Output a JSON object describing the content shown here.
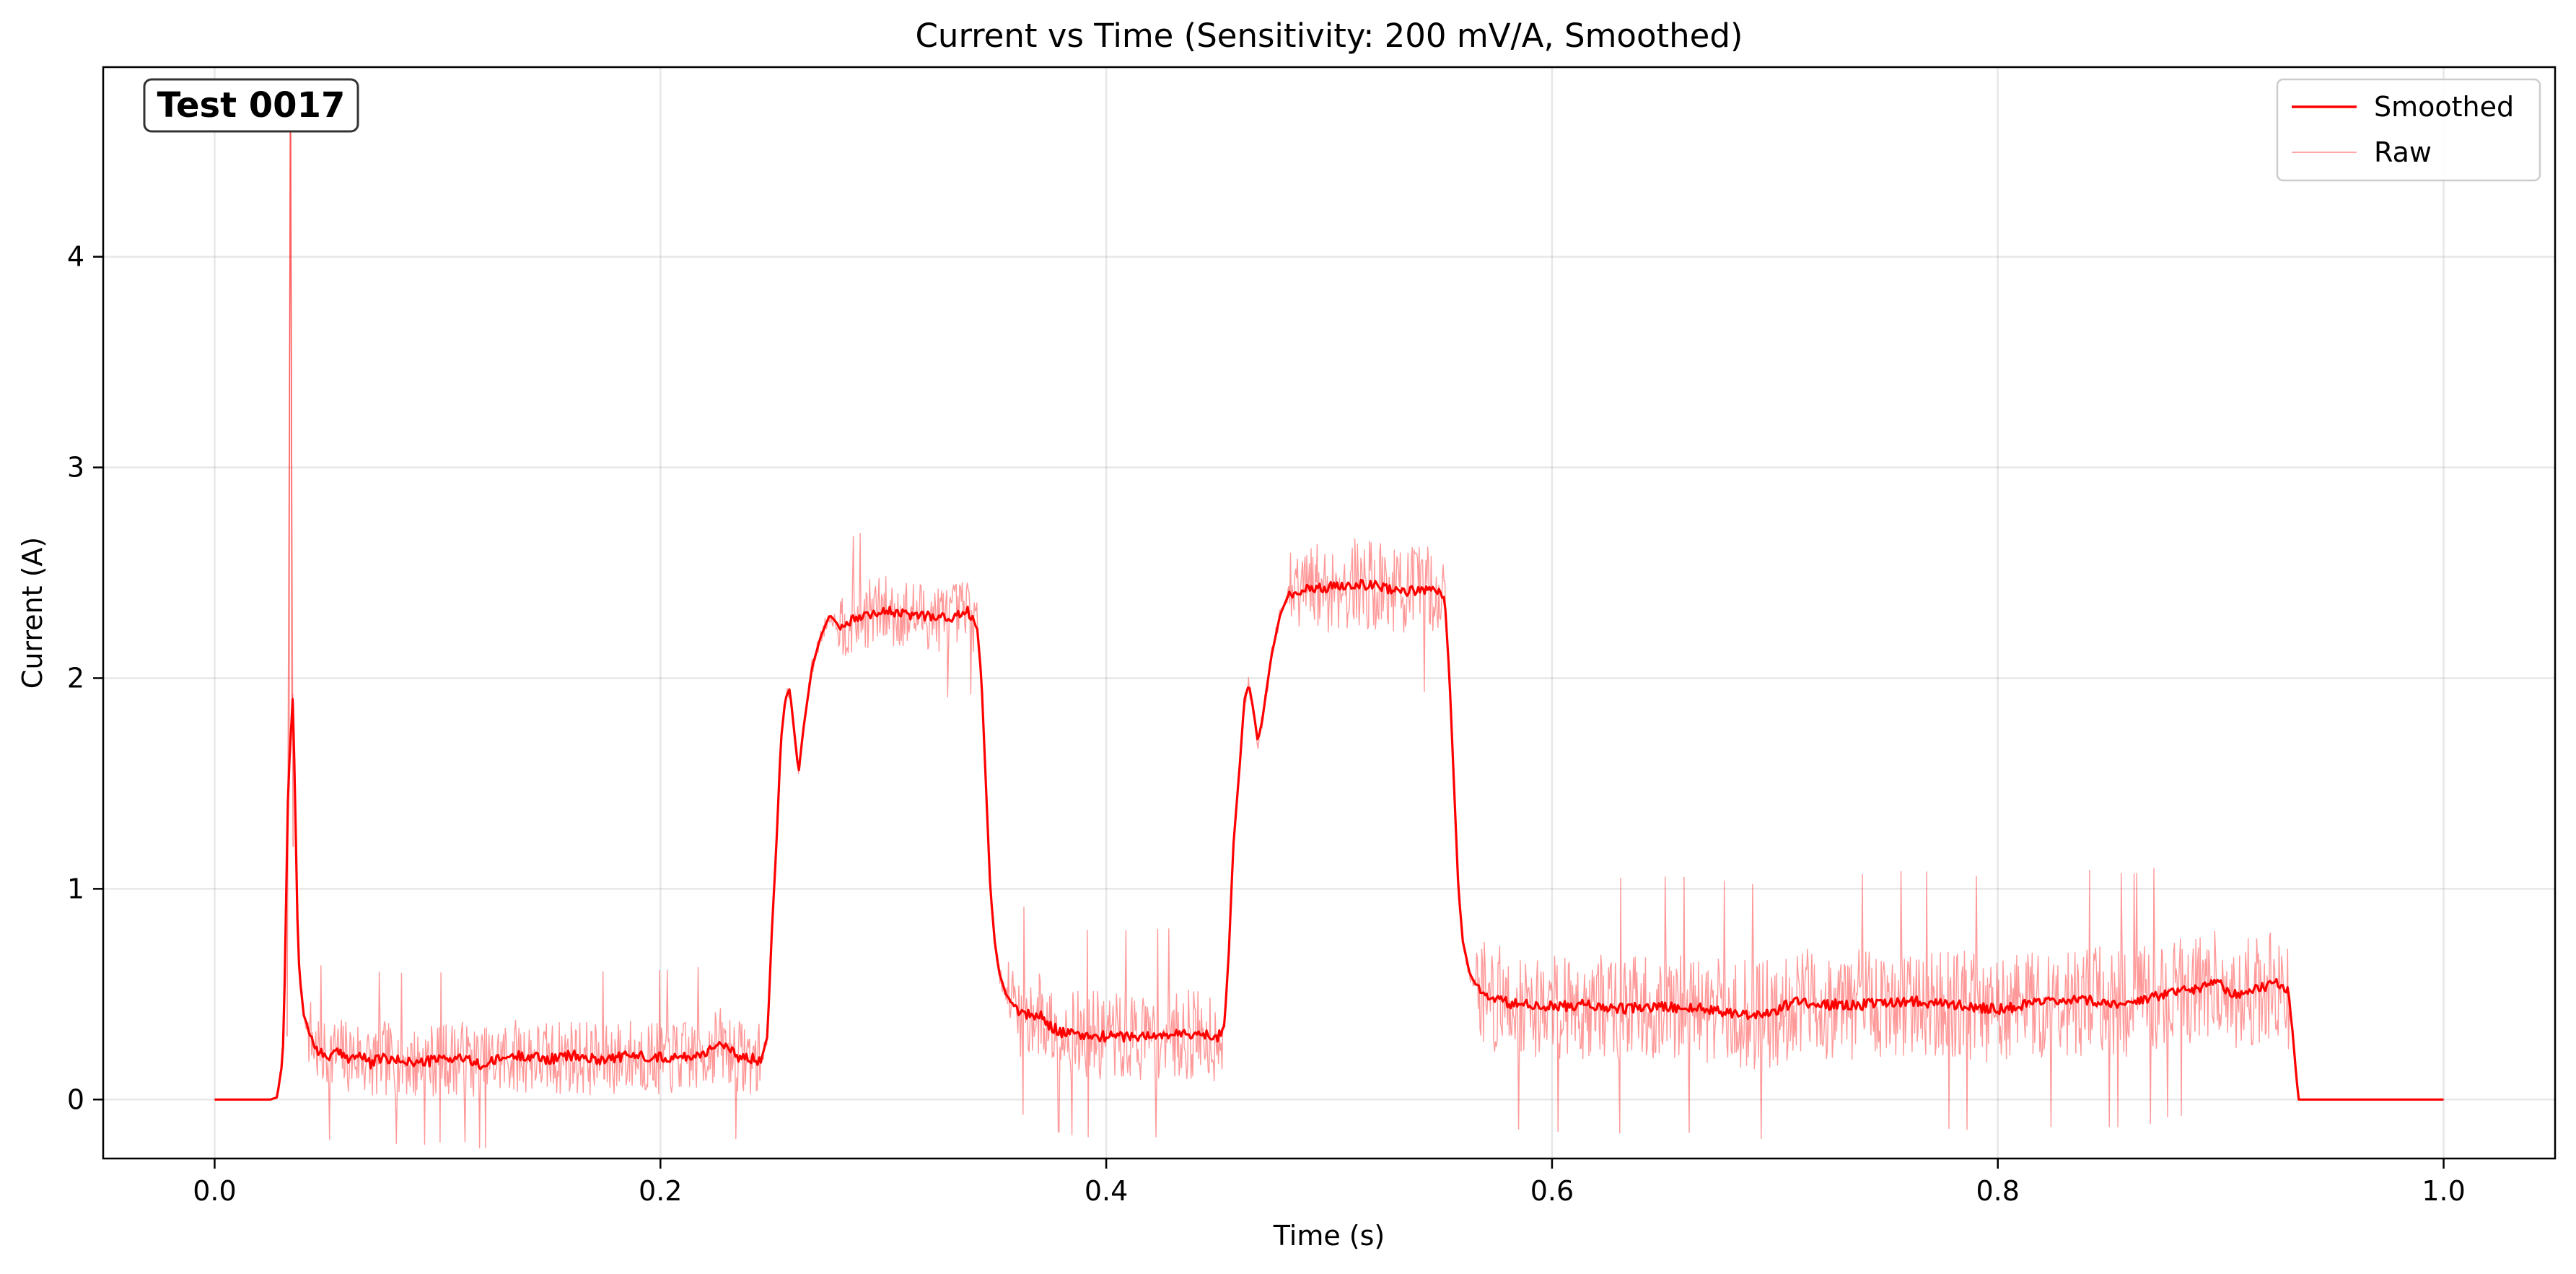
{
  "chart_data": {
    "type": "line",
    "title": "Current vs Time (Sensitivity: 200 mV/A, Smoothed)",
    "xlabel": "Time (s)",
    "ylabel": "Current (A)",
    "xlim": [
      -0.05,
      1.05
    ],
    "ylim": [
      -0.28,
      4.9
    ],
    "xticks": [
      0.0,
      0.2,
      0.4,
      0.6,
      0.8,
      1.0
    ],
    "xtick_labels": [
      "0.0",
      "0.2",
      "0.4",
      "0.6",
      "0.8",
      "1.0"
    ],
    "yticks": [
      0,
      1,
      2,
      3,
      4
    ],
    "ytick_labels": [
      "0",
      "1",
      "2",
      "3",
      "4"
    ],
    "grid": true,
    "legend_position": "top-right",
    "annotation": "Test 0017",
    "colors": {
      "smoothed": "#ff0000",
      "raw": "#ff0000"
    },
    "series": [
      {
        "name": "Smoothed",
        "style": "solid",
        "points": [
          [
            0.0,
            0.0
          ],
          [
            0.025,
            0.0
          ],
          [
            0.028,
            0.01
          ],
          [
            0.03,
            0.15
          ],
          [
            0.031,
            0.3
          ],
          [
            0.032,
            0.9
          ],
          [
            0.033,
            1.5
          ],
          [
            0.035,
            1.9
          ],
          [
            0.036,
            1.5
          ],
          [
            0.037,
            0.9
          ],
          [
            0.038,
            0.6
          ],
          [
            0.04,
            0.4
          ],
          [
            0.045,
            0.25
          ],
          [
            0.05,
            0.2
          ],
          [
            0.055,
            0.22
          ],
          [
            0.06,
            0.2
          ],
          [
            0.065,
            0.21
          ],
          [
            0.07,
            0.17
          ],
          [
            0.075,
            0.2
          ],
          [
            0.08,
            0.18
          ],
          [
            0.085,
            0.19
          ],
          [
            0.09,
            0.17
          ],
          [
            0.1,
            0.19
          ],
          [
            0.11,
            0.2
          ],
          [
            0.12,
            0.16
          ],
          [
            0.13,
            0.2
          ],
          [
            0.14,
            0.21
          ],
          [
            0.15,
            0.19
          ],
          [
            0.16,
            0.21
          ],
          [
            0.17,
            0.19
          ],
          [
            0.18,
            0.2
          ],
          [
            0.19,
            0.21
          ],
          [
            0.2,
            0.2
          ],
          [
            0.21,
            0.2
          ],
          [
            0.22,
            0.22
          ],
          [
            0.225,
            0.27
          ],
          [
            0.23,
            0.24
          ],
          [
            0.235,
            0.2
          ],
          [
            0.24,
            0.2
          ],
          [
            0.245,
            0.18
          ],
          [
            0.248,
            0.3
          ],
          [
            0.25,
            0.8
          ],
          [
            0.252,
            1.2
          ],
          [
            0.254,
            1.7
          ],
          [
            0.256,
            1.9
          ],
          [
            0.258,
            1.95
          ],
          [
            0.26,
            1.75
          ],
          [
            0.262,
            1.55
          ],
          [
            0.264,
            1.75
          ],
          [
            0.268,
            2.05
          ],
          [
            0.272,
            2.2
          ],
          [
            0.276,
            2.3
          ],
          [
            0.28,
            2.25
          ],
          [
            0.29,
            2.3
          ],
          [
            0.3,
            2.32
          ],
          [
            0.31,
            2.3
          ],
          [
            0.32,
            2.3
          ],
          [
            0.33,
            2.28
          ],
          [
            0.338,
            2.32
          ],
          [
            0.342,
            2.25
          ],
          [
            0.344,
            2.0
          ],
          [
            0.346,
            1.5
          ],
          [
            0.348,
            1.0
          ],
          [
            0.35,
            0.75
          ],
          [
            0.352,
            0.6
          ],
          [
            0.355,
            0.5
          ],
          [
            0.36,
            0.42
          ],
          [
            0.365,
            0.4
          ],
          [
            0.37,
            0.4
          ],
          [
            0.375,
            0.35
          ],
          [
            0.38,
            0.32
          ],
          [
            0.39,
            0.3
          ],
          [
            0.4,
            0.3
          ],
          [
            0.41,
            0.3
          ],
          [
            0.42,
            0.3
          ],
          [
            0.43,
            0.31
          ],
          [
            0.44,
            0.31
          ],
          [
            0.45,
            0.3
          ],
          [
            0.453,
            0.35
          ],
          [
            0.455,
            0.7
          ],
          [
            0.457,
            1.2
          ],
          [
            0.46,
            1.6
          ],
          [
            0.462,
            1.9
          ],
          [
            0.464,
            1.97
          ],
          [
            0.466,
            1.85
          ],
          [
            0.468,
            1.7
          ],
          [
            0.47,
            1.8
          ],
          [
            0.474,
            2.1
          ],
          [
            0.478,
            2.3
          ],
          [
            0.482,
            2.4
          ],
          [
            0.49,
            2.42
          ],
          [
            0.5,
            2.43
          ],
          [
            0.51,
            2.45
          ],
          [
            0.52,
            2.44
          ],
          [
            0.53,
            2.42
          ],
          [
            0.54,
            2.41
          ],
          [
            0.548,
            2.43
          ],
          [
            0.552,
            2.35
          ],
          [
            0.554,
            2.0
          ],
          [
            0.556,
            1.5
          ],
          [
            0.558,
            1.0
          ],
          [
            0.56,
            0.75
          ],
          [
            0.563,
            0.6
          ],
          [
            0.567,
            0.52
          ],
          [
            0.575,
            0.47
          ],
          [
            0.585,
            0.45
          ],
          [
            0.6,
            0.44
          ],
          [
            0.615,
            0.45
          ],
          [
            0.63,
            0.43
          ],
          [
            0.65,
            0.44
          ],
          [
            0.67,
            0.43
          ],
          [
            0.69,
            0.4
          ],
          [
            0.7,
            0.42
          ],
          [
            0.71,
            0.47
          ],
          [
            0.72,
            0.45
          ],
          [
            0.74,
            0.45
          ],
          [
            0.76,
            0.47
          ],
          [
            0.78,
            0.45
          ],
          [
            0.8,
            0.43
          ],
          [
            0.82,
            0.46
          ],
          [
            0.84,
            0.47
          ],
          [
            0.86,
            0.45
          ],
          [
            0.875,
            0.5
          ],
          [
            0.89,
            0.53
          ],
          [
            0.898,
            0.57
          ],
          [
            0.905,
            0.5
          ],
          [
            0.915,
            0.52
          ],
          [
            0.925,
            0.55
          ],
          [
            0.93,
            0.52
          ],
          [
            0.932,
            0.35
          ],
          [
            0.934,
            0.1
          ],
          [
            0.935,
            0.0
          ],
          [
            1.0,
            0.0
          ]
        ]
      },
      {
        "name": "Raw",
        "style": "thin",
        "segments": [
          {
            "t0": 0.042,
            "t1": 0.245,
            "base": 0.2,
            "amp": 0.18,
            "seed": 11
          },
          {
            "t0": 0.28,
            "t1": 0.342,
            "base": 2.3,
            "amp": 0.17,
            "seed": 23
          },
          {
            "t0": 0.356,
            "t1": 0.452,
            "base": 0.32,
            "amp": 0.22,
            "seed": 37
          },
          {
            "t0": 0.482,
            "t1": 0.552,
            "base": 2.43,
            "amp": 0.22,
            "seed": 41
          },
          {
            "t0": 0.566,
            "t1": 0.931,
            "base": 0.47,
            "amp": 0.27,
            "seed": 53
          }
        ],
        "spike": {
          "x": 0.034,
          "peak": 4.65
        }
      }
    ]
  }
}
